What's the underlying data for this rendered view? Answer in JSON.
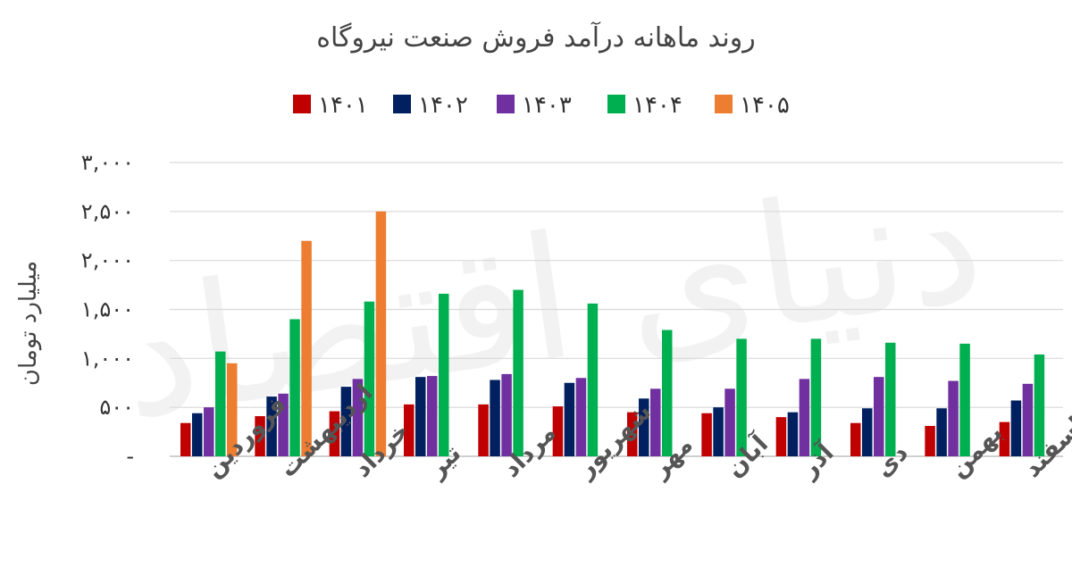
{
  "chart_data": {
    "type": "bar",
    "title": "روند ماهانه درآمد فروش صنعت نیروگاه",
    "ylabel": "میلیارد تومان",
    "xlabel": "",
    "ylim": [
      0,
      3000
    ],
    "yticks": [
      0,
      500,
      1000,
      1500,
      2000,
      2500,
      3000
    ],
    "ytick_labels": [
      "-",
      "۵۰۰",
      "۱,۰۰۰",
      "۱,۵۰۰",
      "۲,۰۰۰",
      "۲,۵۰۰",
      "۳,۰۰۰"
    ],
    "grid": true,
    "legend_position": "top",
    "categories": [
      "فروردین",
      "اردیبهشت",
      "خرداد",
      "تیر",
      "مرداد",
      "شهریور",
      "مهر",
      "آبان",
      "آذر",
      "دی",
      "بهمن",
      "اسفند"
    ],
    "series": [
      {
        "name": "۱۴۰۱",
        "color": "#c00000",
        "values": [
          340,
          410,
          460,
          530,
          530,
          510,
          450,
          440,
          400,
          340,
          310,
          350
        ]
      },
      {
        "name": "۱۴۰۲",
        "color": "#002060",
        "values": [
          440,
          610,
          710,
          810,
          780,
          750,
          590,
          500,
          450,
          490,
          490,
          570
        ]
      },
      {
        "name": "۱۴۰۳",
        "color": "#7030a0",
        "values": [
          500,
          640,
          790,
          820,
          840,
          800,
          690,
          690,
          790,
          810,
          770,
          740
        ]
      },
      {
        "name": "۱۴۰۴",
        "color": "#00b050",
        "values": [
          1070,
          1400,
          1580,
          1660,
          1700,
          1560,
          1290,
          1200,
          1200,
          1160,
          1150,
          1040
        ]
      },
      {
        "name": "۱۴۰۵",
        "color": "#ed7d31",
        "values": [
          950,
          2200,
          2500,
          null,
          null,
          null,
          null,
          null,
          null,
          null,
          null,
          null
        ]
      }
    ]
  },
  "watermark": "دنیای اقتصاد"
}
